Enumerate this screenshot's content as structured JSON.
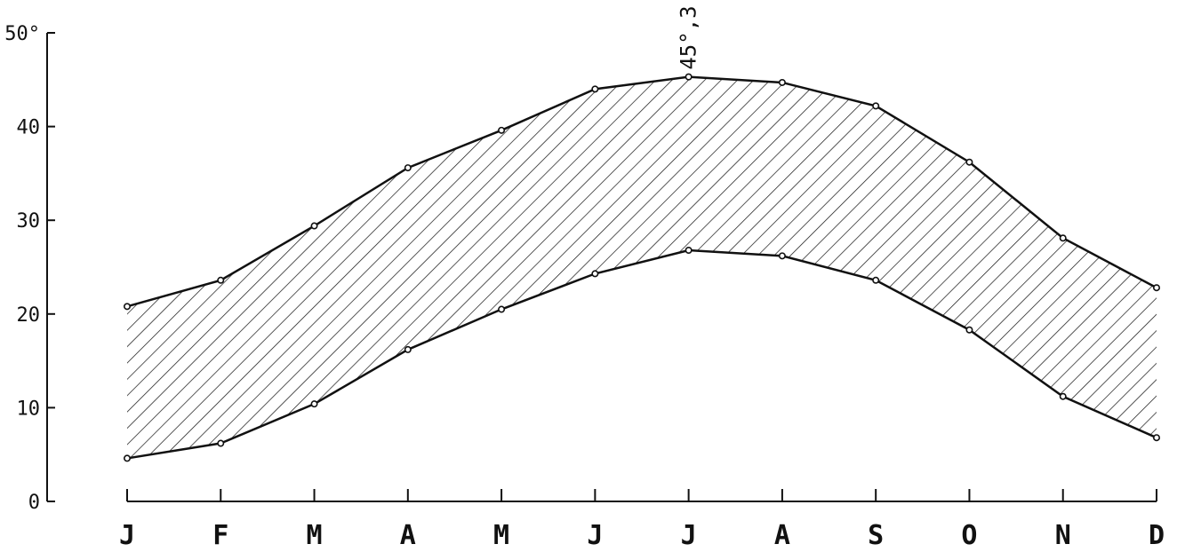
{
  "chart_data": {
    "type": "area",
    "title": "",
    "xlabel": "",
    "ylabel": "",
    "categories": [
      "J",
      "F",
      "M",
      "A",
      "M",
      "J",
      "J",
      "A",
      "S",
      "O",
      "N",
      "D"
    ],
    "series": [
      {
        "values": [
          20.8,
          23.6,
          29.4,
          35.6,
          39.6,
          44.0,
          45.3,
          44.7,
          42.2,
          36.2,
          28.1,
          22.8
        ]
      },
      {
        "values": [
          4.6,
          6.2,
          10.4,
          16.2,
          20.5,
          24.3,
          26.8,
          26.2,
          23.6,
          18.3,
          11.2,
          6.8
        ]
      }
    ],
    "ylim": [
      0,
      50
    ],
    "yticks": [
      0,
      10,
      20,
      30,
      40,
      50
    ],
    "ytick_labels": [
      "0",
      "10",
      "20",
      "30",
      "40",
      "50°"
    ],
    "annotation": {
      "text": "45°,3",
      "category_index": 6,
      "value": 45.3
    },
    "grid": false,
    "fill_pattern": "diagonal-hatch",
    "color": "#111111"
  }
}
